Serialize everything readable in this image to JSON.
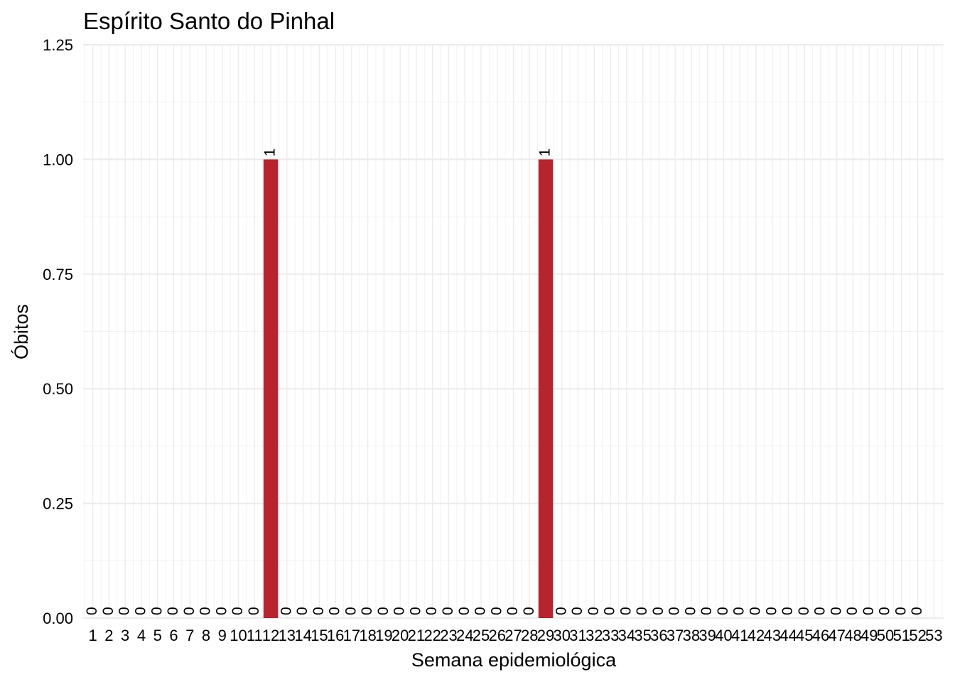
{
  "chart_data": {
    "type": "bar",
    "title": "Espírito Santo do Pinhal",
    "xlabel": "Semana epidemiológica",
    "ylabel": "Óbitos",
    "ylim": [
      0,
      1.25
    ],
    "yticks": [
      "0.00",
      "0.25",
      "0.50",
      "0.75",
      "1.00",
      "1.25"
    ],
    "categories": [
      "1",
      "2",
      "3",
      "4",
      "5",
      "6",
      "7",
      "8",
      "9",
      "10",
      "11",
      "12",
      "13",
      "14",
      "15",
      "16",
      "17",
      "18",
      "19",
      "20",
      "21",
      "22",
      "23",
      "24",
      "25",
      "26",
      "27",
      "28",
      "29",
      "30",
      "31",
      "32",
      "33",
      "34",
      "35",
      "36",
      "37",
      "38",
      "39",
      "40",
      "41",
      "42",
      "43",
      "44",
      "45",
      "46",
      "47",
      "48",
      "49",
      "50",
      "51",
      "52",
      "53"
    ],
    "values": [
      0,
      0,
      0,
      0,
      0,
      0,
      0,
      0,
      0,
      0,
      0,
      1,
      0,
      0,
      0,
      0,
      0,
      0,
      0,
      0,
      0,
      0,
      0,
      0,
      0,
      0,
      0,
      0,
      1,
      0,
      0,
      0,
      0,
      0,
      0,
      0,
      0,
      0,
      0,
      0,
      0,
      0,
      0,
      0,
      0,
      0,
      0,
      0,
      0,
      0,
      0,
      0,
      null
    ],
    "data_labels": [
      "0",
      "0",
      "0",
      "0",
      "0",
      "0",
      "0",
      "0",
      "0",
      "0",
      "0",
      "1",
      "0",
      "0",
      "0",
      "0",
      "0",
      "0",
      "0",
      "0",
      "0",
      "0",
      "0",
      "0",
      "0",
      "0",
      "0",
      "0",
      "1",
      "0",
      "0",
      "0",
      "0",
      "0",
      "0",
      "0",
      "0",
      "0",
      "0",
      "0",
      "0",
      "0",
      "0",
      "0",
      "0",
      "0",
      "0",
      "0",
      "0",
      "0",
      "0",
      "0",
      ""
    ],
    "bar_color": "#B8242E",
    "grid": true,
    "legend": "none"
  }
}
